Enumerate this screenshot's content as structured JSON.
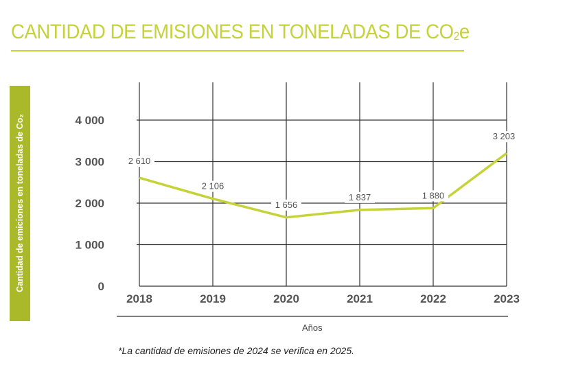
{
  "chart_data": {
    "type": "line",
    "title": "CANTIDAD DE EMISIONES EN TONELADAS DE CO",
    "title_sub": "2",
    "title_suffix": "e",
    "ylabel": "Cantidad de emiciones en toneladas de Co₂",
    "xlabel": "Años",
    "categories": [
      "2018",
      "2019",
      "2020",
      "2021",
      "2022",
      "2023"
    ],
    "values": [
      2610,
      2106,
      1656,
      1837,
      1880,
      3203
    ],
    "data_labels": [
      "2 610",
      "2 106",
      "1 656",
      "1 837",
      "1 880",
      "3 203"
    ],
    "yticks": [
      0,
      1000,
      2000,
      3000,
      4000
    ],
    "ytick_labels": [
      "0",
      "1 000",
      "2 000",
      "3 000",
      "4 000"
    ],
    "ylim": [
      0,
      4000
    ],
    "grid": true,
    "line_color": "#c5d238",
    "footnote": "*La cantidad de emisiones de 2024 se verifica en 2025."
  }
}
